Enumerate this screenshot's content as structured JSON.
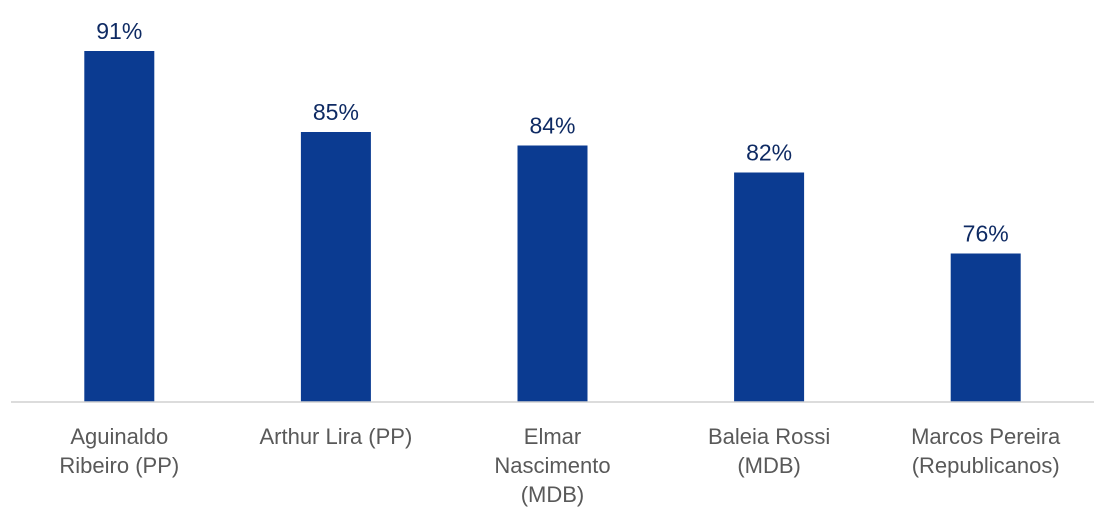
{
  "chart_data": {
    "type": "bar",
    "categories": [
      "Aguinaldo\nRibeiro (PP)",
      "Arthur Lira (PP)",
      "Elmar\nNascimento\n(MDB)",
      "Baleia Rossi\n(MDB)",
      "Marcos Pereira\n(Republicanos)"
    ],
    "values": [
      91,
      85,
      84,
      82,
      76
    ],
    "value_labels": [
      "91%",
      "85%",
      "84%",
      "82%",
      "76%"
    ],
    "color": "#0b3b91",
    "ylim": [
      65,
      92
    ]
  }
}
